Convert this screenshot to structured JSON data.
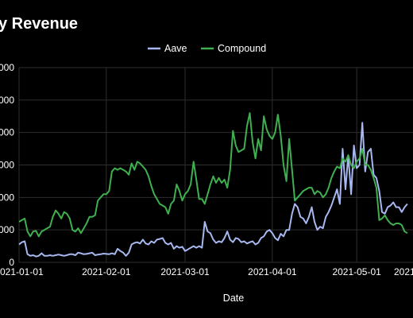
{
  "chart_data": {
    "type": "line",
    "title": "y Revenue",
    "xlabel": "Date",
    "ylabel": "",
    "legend_position": "top-center",
    "grid": true,
    "x_tick_labels": [
      "2021-01-01",
      "2021-02-01",
      "2021-03-01",
      "2021-04-01",
      "2021-05-01",
      "2021-"
    ],
    "y_tick_labels": [
      "0",
      "000",
      "0000",
      "0000",
      "0000",
      "0000",
      "0000"
    ],
    "y_tick_values": [
      0,
      1,
      2,
      3,
      4,
      5,
      6
    ],
    "ylim": [
      0,
      6
    ],
    "x_start": "2021-01-01",
    "x_end": "2021-05-21",
    "series": [
      {
        "name": "Aave",
        "color": "#a7b8f0",
        "values": [
          0.55,
          0.62,
          0.65,
          0.25,
          0.2,
          0.22,
          0.18,
          0.2,
          0.28,
          0.2,
          0.2,
          0.22,
          0.2,
          0.22,
          0.24,
          0.22,
          0.2,
          0.22,
          0.25,
          0.25,
          0.22,
          0.3,
          0.28,
          0.25,
          0.26,
          0.28,
          0.3,
          0.22,
          0.24,
          0.25,
          0.27,
          0.26,
          0.25,
          0.28,
          0.25,
          0.42,
          0.35,
          0.3,
          0.2,
          0.3,
          0.55,
          0.6,
          0.62,
          0.58,
          0.7,
          0.58,
          0.55,
          0.65,
          0.6,
          0.7,
          0.72,
          0.75,
          0.6,
          0.55,
          0.6,
          0.42,
          0.5,
          0.45,
          0.48,
          0.35,
          0.4,
          0.45,
          0.5,
          0.45,
          0.5,
          0.45,
          1.25,
          0.95,
          0.9,
          0.7,
          0.6,
          0.65,
          0.62,
          0.75,
          0.95,
          0.7,
          0.62,
          0.75,
          0.72,
          0.62,
          0.65,
          0.58,
          0.62,
          0.65,
          0.55,
          0.6,
          0.75,
          0.8,
          0.95,
          1.0,
          0.9,
          0.75,
          0.68,
          0.88,
          0.8,
          1.0,
          1.0,
          1.5,
          1.8,
          1.7,
          1.4,
          1.35,
          1.2,
          1.4,
          1.7,
          1.25,
          1.0,
          1.1,
          1.05,
          1.4,
          1.55,
          1.75,
          2.0,
          2.25,
          1.8,
          3.5,
          2.25,
          3.3,
          2.1,
          3.6,
          2.9,
          3.0,
          4.3,
          2.8,
          3.4,
          3.5,
          2.7,
          2.6,
          2.2,
          1.55,
          1.5,
          1.7,
          1.75,
          1.85,
          1.7,
          1.7,
          1.55,
          1.7,
          1.8
        ]
      },
      {
        "name": "Compound",
        "color": "#3fb04f",
        "values": [
          1.25,
          1.3,
          1.35,
          0.95,
          0.8,
          0.95,
          0.97,
          0.8,
          0.95,
          1.0,
          1.05,
          1.1,
          1.4,
          1.6,
          1.5,
          1.35,
          1.55,
          1.5,
          1.35,
          1.0,
          0.95,
          1.05,
          0.9,
          1.05,
          1.2,
          1.4,
          1.4,
          1.45,
          1.9,
          2.0,
          2.1,
          2.1,
          2.2,
          2.8,
          2.9,
          2.85,
          2.9,
          2.85,
          2.8,
          2.7,
          3.05,
          2.85,
          3.1,
          3.05,
          2.95,
          2.85,
          2.65,
          2.35,
          2.1,
          1.95,
          1.8,
          1.75,
          1.7,
          1.5,
          1.8,
          1.9,
          2.4,
          2.2,
          1.9,
          2.1,
          2.2,
          2.4,
          3.1,
          2.55,
          1.95,
          1.95,
          1.8,
          2.1,
          2.4,
          2.65,
          2.45,
          2.6,
          2.45,
          2.55,
          2.3,
          2.85,
          4.05,
          3.6,
          3.4,
          3.45,
          3.5,
          4.2,
          4.6,
          3.7,
          3.2,
          3.8,
          3.45,
          4.5,
          4.1,
          3.9,
          3.8,
          4.0,
          4.55,
          3.9,
          3.0,
          2.5,
          3.8,
          2.85,
          1.9,
          2.0,
          2.1,
          2.2,
          2.25,
          2.3,
          2.3,
          2.1,
          2.2,
          2.15,
          2.0,
          2.1,
          2.3,
          2.6,
          2.8,
          2.95,
          2.9,
          3.2,
          3.1,
          3.3,
          3.0,
          2.9,
          3.1,
          3.2,
          3.5,
          3.0,
          3.0,
          2.85,
          2.6,
          2.3,
          1.3,
          1.35,
          1.45,
          1.3,
          1.2,
          1.15,
          1.2,
          1.2,
          1.15,
          0.95,
          0.9
        ]
      }
    ]
  }
}
